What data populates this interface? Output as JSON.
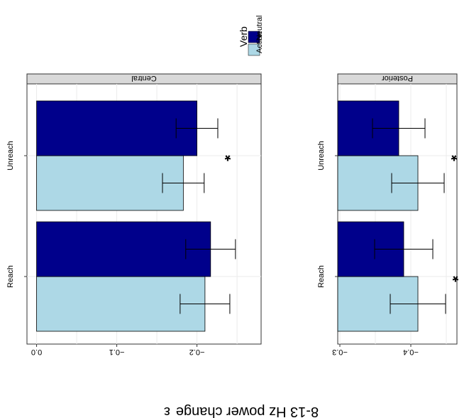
{
  "chart_data": [
    {
      "type": "bar",
      "orientation": "horizontal",
      "rendered_rotation": "upside-down",
      "facet_label": "Central",
      "categories": [
        "Reach",
        "Unreach"
      ],
      "series": [
        {
          "name": "Action",
          "color": "#add8e6",
          "values": [
            -0.21,
            -0.183
          ],
          "error": [
            0.031,
            0.026
          ]
        },
        {
          "name": "Neutral",
          "color": "#00008b",
          "values": [
            -0.217,
            -0.2
          ],
          "error": [
            0.031,
            0.026
          ]
        }
      ],
      "significance": [
        false,
        true
      ],
      "xlim": [
        -0.28,
        0.012
      ],
      "xticks": [
        -0.2,
        -0.1,
        0.0
      ],
      "xticklabels": [
        "−0.2",
        "−0.1",
        "0.0"
      ],
      "grid": true
    },
    {
      "type": "bar",
      "orientation": "horizontal",
      "rendered_rotation": "upside-down",
      "facet_label": "Posterior",
      "categories": [
        "Reach",
        "Unreach"
      ],
      "series": [
        {
          "name": "Action",
          "color": "#add8e6",
          "values": [
            -0.41,
            -0.41
          ],
          "error": [
            0.039,
            0.037
          ]
        },
        {
          "name": "Neutral",
          "color": "#00008b",
          "values": [
            -0.39,
            -0.383
          ],
          "error": [
            0.041,
            0.037
          ]
        }
      ],
      "significance": [
        true,
        true
      ],
      "xlim": [
        -0.465,
        -0.297
      ],
      "xticks": [
        -0.4,
        -0.3
      ],
      "xticklabels": [
        "−0.4",
        "−0.3"
      ],
      "grid": true
    }
  ],
  "axis_title": "8-13 Hz power change",
  "axis_title_symbol": "ε",
  "legend": {
    "title": "Verb",
    "items": [
      {
        "label": "Action",
        "color": "#add8e6"
      },
      {
        "label": "Neutral",
        "color": "#00008b"
      }
    ],
    "position": "top-right"
  },
  "significance_marker": "*"
}
